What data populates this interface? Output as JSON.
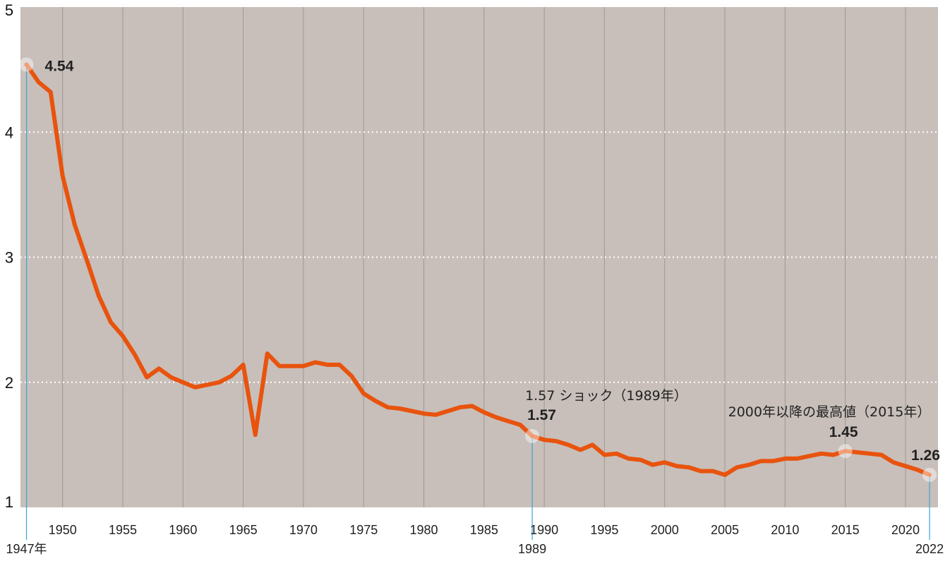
{
  "chart_data": {
    "type": "line",
    "title": "",
    "xlabel": "",
    "ylabel": "",
    "xlim": [
      1946.5,
      2022.7
    ],
    "ylim": [
      1,
      5
    ],
    "yticks": [
      {
        "value": 1,
        "label": "1"
      },
      {
        "value": 2,
        "label": "2"
      },
      {
        "value": 3,
        "label": "3"
      },
      {
        "value": 4,
        "label": "4"
      },
      {
        "value": 5,
        "label": "5"
      }
    ],
    "xticks": [
      {
        "value": 1950,
        "label": "1950"
      },
      {
        "value": 1955,
        "label": "1955"
      },
      {
        "value": 1960,
        "label": "1960"
      },
      {
        "value": 1965,
        "label": "1965"
      },
      {
        "value": 1970,
        "label": "1970"
      },
      {
        "value": 1975,
        "label": "1975"
      },
      {
        "value": 1980,
        "label": "1980"
      },
      {
        "value": 1985,
        "label": "1985"
      },
      {
        "value": 1990,
        "label": "1990"
      },
      {
        "value": 1995,
        "label": "1995"
      },
      {
        "value": 2000,
        "label": "2000"
      },
      {
        "value": 2005,
        "label": "2005"
      },
      {
        "value": 2010,
        "label": "2010"
      },
      {
        "value": 2015,
        "label": "2015"
      },
      {
        "value": 2020,
        "label": "2020"
      }
    ],
    "grid": {
      "vertical": true,
      "horizontal_dotted": true
    },
    "colors": {
      "line": "#e8530e",
      "background": "#c8bfba",
      "leader": "#38a3d6"
    },
    "x": [
      1947,
      1948,
      1949,
      1950,
      1951,
      1952,
      1953,
      1954,
      1955,
      1956,
      1957,
      1958,
      1959,
      1960,
      1961,
      1962,
      1963,
      1964,
      1965,
      1966,
      1967,
      1968,
      1969,
      1970,
      1971,
      1972,
      1973,
      1974,
      1975,
      1976,
      1977,
      1978,
      1979,
      1980,
      1981,
      1982,
      1983,
      1984,
      1985,
      1986,
      1987,
      1988,
      1989,
      1990,
      1991,
      1992,
      1993,
      1994,
      1995,
      1996,
      1997,
      1998,
      1999,
      2000,
      2001,
      2002,
      2003,
      2004,
      2005,
      2006,
      2007,
      2008,
      2009,
      2010,
      2011,
      2012,
      2013,
      2014,
      2015,
      2016,
      2017,
      2018,
      2019,
      2020,
      2021,
      2022
    ],
    "series": [
      {
        "values": [
          4.54,
          4.4,
          4.32,
          3.65,
          3.26,
          2.98,
          2.69,
          2.48,
          2.37,
          2.22,
          2.04,
          2.11,
          2.04,
          2.0,
          1.96,
          1.98,
          2.0,
          2.05,
          2.14,
          1.58,
          2.23,
          2.13,
          2.13,
          2.13,
          2.16,
          2.14,
          2.14,
          2.05,
          1.91,
          1.85,
          1.8,
          1.79,
          1.77,
          1.75,
          1.74,
          1.77,
          1.8,
          1.81,
          1.76,
          1.72,
          1.69,
          1.66,
          1.57,
          1.54,
          1.53,
          1.5,
          1.46,
          1.5,
          1.42,
          1.43,
          1.39,
          1.38,
          1.34,
          1.36,
          1.33,
          1.32,
          1.29,
          1.29,
          1.26,
          1.32,
          1.34,
          1.37,
          1.37,
          1.39,
          1.39,
          1.41,
          1.43,
          1.42,
          1.45,
          1.44,
          1.43,
          1.42,
          1.36,
          1.33,
          1.3,
          1.26
        ]
      }
    ],
    "annotations": [
      {
        "x": 1947,
        "y": 4.54,
        "value_label": "4.54",
        "note": "",
        "axis_label": "1947年"
      },
      {
        "x": 1989,
        "y": 1.57,
        "value_label": "1.57",
        "note": "1.57 ショック（1989年）",
        "axis_label": "1989"
      },
      {
        "x": 2015,
        "y": 1.45,
        "value_label": "1.45",
        "note": "2000年以降の最高値（2015年）",
        "axis_label": ""
      },
      {
        "x": 2022,
        "y": 1.26,
        "value_label": "1.26",
        "note": "",
        "axis_label": "2022"
      }
    ]
  }
}
